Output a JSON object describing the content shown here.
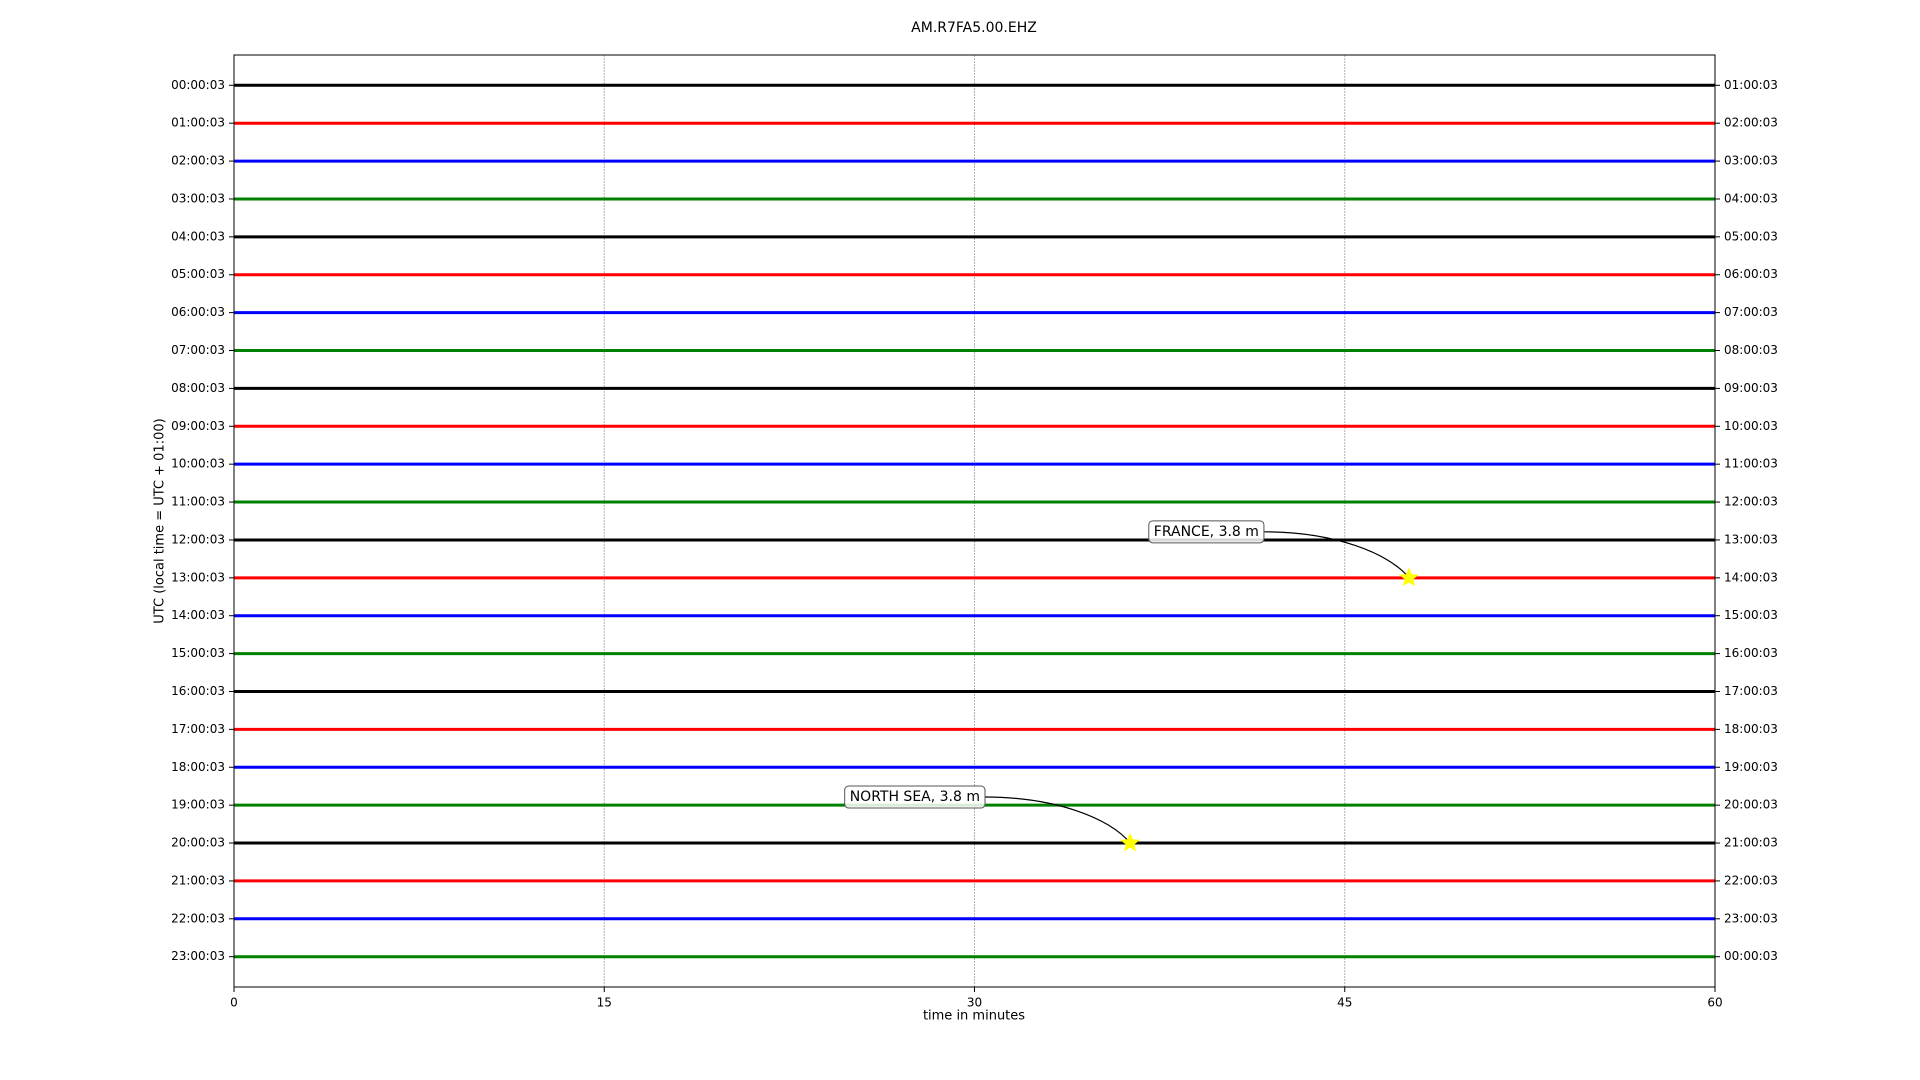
{
  "chart_data": {
    "type": "dayplot",
    "title": "AM.R7FA5.00.EHZ",
    "xlabel": "time in minutes",
    "ylabel": "UTC (local time = UTC + 01:00)",
    "xlim": [
      0,
      60
    ],
    "xticks": [
      0,
      15,
      30,
      45,
      60
    ],
    "grid": true,
    "colors": [
      "#000000",
      "#ff0000",
      "#0000ff",
      "#008000"
    ],
    "categories": [
      "00:00:03",
      "01:00:03",
      "02:00:03",
      "03:00:03",
      "04:00:03",
      "05:00:03",
      "06:00:03",
      "07:00:03",
      "08:00:03",
      "09:00:03",
      "10:00:03",
      "11:00:03",
      "12:00:03",
      "13:00:03",
      "14:00:03",
      "15:00:03",
      "16:00:03",
      "17:00:03",
      "18:00:03",
      "19:00:03",
      "20:00:03",
      "21:00:03",
      "22:00:03",
      "23:00:03"
    ],
    "right_labels": [
      "01:00:03",
      "02:00:03",
      "03:00:03",
      "04:00:03",
      "05:00:03",
      "06:00:03",
      "07:00:03",
      "08:00:03",
      "09:00:03",
      "10:00:03",
      "11:00:03",
      "12:00:03",
      "13:00:03",
      "14:00:03",
      "15:00:03",
      "16:00:03",
      "17:00:03",
      "18:00:03",
      "19:00:03",
      "20:00:03",
      "21:00:03",
      "22:00:03",
      "23:00:03",
      "00:00:03"
    ],
    "events": [
      {
        "label": "FRANCE, 3.8 m",
        "row": "13:00:03",
        "x": 47.6,
        "color": "#ffff00"
      },
      {
        "label": "NORTH SEA, 3.8 m",
        "row": "20:00:03",
        "x": 36.3,
        "color": "#ffff00"
      }
    ]
  }
}
